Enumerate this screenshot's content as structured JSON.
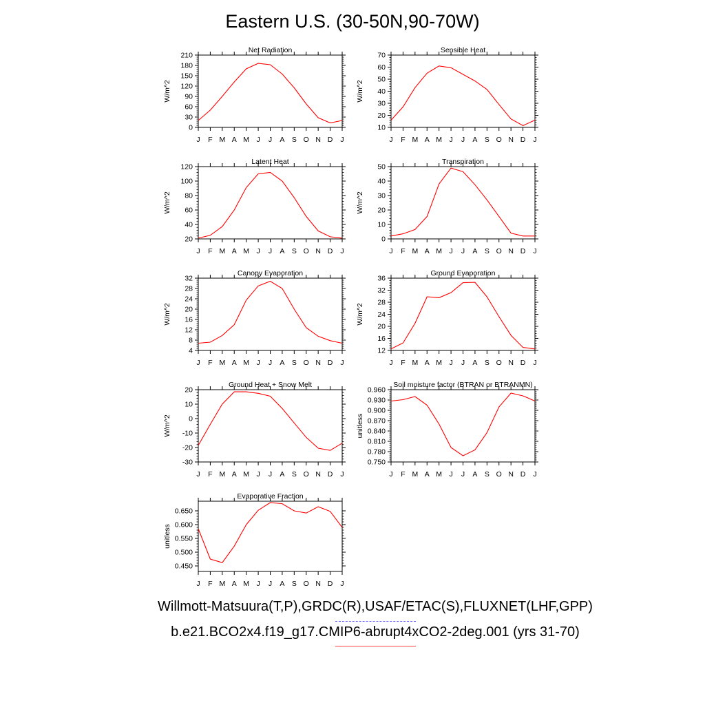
{
  "title": "Eastern U.S. (30-50N,90-70W)",
  "month_labels": [
    "J",
    "F",
    "M",
    "A",
    "M",
    "J",
    "J",
    "A",
    "S",
    "O",
    "N",
    "D",
    "J"
  ],
  "footer": {
    "obs_sources": "Willmott-Matsuura(T,P),GRDC(R),USAF/ETAC(S),FLUXNET(LHF,GPP)",
    "model_run": "b.e21.BCO2x4.f19_g17.CMIP6-abrupt4xCO2-2deg.001 (yrs 31-70)"
  },
  "colors": {
    "model_line": "#ff0000",
    "obs_line": "#6060ff",
    "axes": "#000000"
  },
  "chart_data": [
    {
      "type": "line",
      "title": "Net Radiation",
      "ylabel": "W/m^2",
      "ylim": [
        0,
        210
      ],
      "yticks": [
        "0",
        "30",
        "60",
        "90",
        "120",
        "150",
        "180",
        "210"
      ],
      "x": [
        "J",
        "F",
        "M",
        "A",
        "M",
        "J",
        "J",
        "A",
        "S",
        "O",
        "N",
        "D",
        "J"
      ],
      "series": [
        {
          "values": [
            20,
            50,
            90,
            132,
            170,
            186,
            182,
            155,
            115,
            68,
            28,
            13,
            20
          ]
        }
      ]
    },
    {
      "type": "line",
      "title": "Sensible Heat",
      "ylabel": "W/m^2",
      "ylim": [
        10,
        70
      ],
      "yticks": [
        "10",
        "20",
        "30",
        "40",
        "50",
        "60",
        "70"
      ],
      "x": [
        "J",
        "F",
        "M",
        "A",
        "M",
        "J",
        "J",
        "A",
        "S",
        "O",
        "N",
        "D",
        "J"
      ],
      "series": [
        {
          "values": [
            16,
            27,
            43,
            55,
            61,
            59.5,
            54,
            48.5,
            41.5,
            29,
            17,
            11.5,
            16
          ]
        }
      ]
    },
    {
      "type": "line",
      "title": "Latent Heat",
      "ylabel": "W/m^2",
      "ylim": [
        20,
        120
      ],
      "yticks": [
        "20",
        "40",
        "60",
        "80",
        "100",
        "120"
      ],
      "x": [
        "J",
        "F",
        "M",
        "A",
        "M",
        "J",
        "J",
        "A",
        "S",
        "O",
        "N",
        "D",
        "J"
      ],
      "series": [
        {
          "values": [
            21,
            25,
            37,
            60,
            91,
            110,
            112,
            100,
            77,
            51,
            31,
            23,
            21
          ]
        }
      ]
    },
    {
      "type": "line",
      "title": "Transpiration",
      "ylabel": "W/m^2",
      "ylim": [
        0,
        50
      ],
      "yticks": [
        "0",
        "10",
        "20",
        "30",
        "40",
        "50"
      ],
      "x": [
        "J",
        "F",
        "M",
        "A",
        "M",
        "J",
        "J",
        "A",
        "S",
        "O",
        "N",
        "D",
        "J"
      ],
      "series": [
        {
          "values": [
            2,
            3.5,
            6.5,
            15.5,
            38,
            49,
            46.5,
            37.5,
            27,
            15.5,
            4,
            2,
            2
          ]
        }
      ]
    },
    {
      "type": "line",
      "title": "Canopy Evaporation",
      "ylabel": "W/m^2",
      "ylim": [
        4,
        32
      ],
      "yticks": [
        "4",
        "8",
        "12",
        "16",
        "20",
        "24",
        "28",
        "32"
      ],
      "x": [
        "J",
        "F",
        "M",
        "A",
        "M",
        "J",
        "J",
        "A",
        "S",
        "O",
        "N",
        "D",
        "J"
      ],
      "series": [
        {
          "values": [
            6.8,
            7.2,
            9.8,
            14,
            23.5,
            29,
            30.8,
            28,
            20,
            12.8,
            9.5,
            7.8,
            6.8
          ]
        }
      ]
    },
    {
      "type": "line",
      "title": "Ground Evaporation",
      "ylabel": "W/m^2",
      "ylim": [
        12,
        36
      ],
      "yticks": [
        "12",
        "16",
        "20",
        "24",
        "28",
        "32",
        "36"
      ],
      "x": [
        "J",
        "F",
        "M",
        "A",
        "M",
        "J",
        "J",
        "A",
        "S",
        "O",
        "N",
        "D",
        "J"
      ],
      "series": [
        {
          "values": [
            12.5,
            14.5,
            21,
            29.8,
            29.5,
            31.2,
            34.5,
            34.6,
            29.8,
            23.2,
            17,
            13,
            12.5
          ]
        }
      ]
    },
    {
      "type": "line",
      "title": "Ground Heat + Snow Melt",
      "ylabel": "W/m^2",
      "ylim": [
        -30,
        20
      ],
      "yticks": [
        "-30",
        "-20",
        "-10",
        "0",
        "10",
        "20"
      ],
      "x": [
        "J",
        "F",
        "M",
        "A",
        "M",
        "J",
        "J",
        "A",
        "S",
        "O",
        "N",
        "D",
        "J"
      ],
      "series": [
        {
          "values": [
            -18.5,
            -4,
            10,
            18.5,
            18.5,
            17.5,
            15.5,
            7,
            -3,
            -13,
            -20.5,
            -22,
            -17
          ]
        }
      ]
    },
    {
      "type": "line",
      "title": "Soil moisture factor (BTRAN or BTRANMN)",
      "ylabel": "unitless",
      "ylim": [
        0.75,
        0.96
      ],
      "yticks": [
        "0.750",
        "0.780",
        "0.810",
        "0.840",
        "0.870",
        "0.900",
        "0.930",
        "0.960"
      ],
      "x": [
        "J",
        "F",
        "M",
        "A",
        "M",
        "J",
        "J",
        "A",
        "S",
        "O",
        "N",
        "D",
        "J"
      ],
      "series": [
        {
          "values": [
            0.927,
            0.931,
            0.94,
            0.915,
            0.86,
            0.792,
            0.768,
            0.785,
            0.835,
            0.91,
            0.95,
            0.942,
            0.927
          ]
        }
      ]
    },
    {
      "type": "line",
      "title": "Evaporative Fraction",
      "ylabel": "unitless",
      "ylim": [
        0.43,
        0.685
      ],
      "yticks": [
        "0.450",
        "0.500",
        "0.550",
        "0.600",
        "0.650"
      ],
      "x": [
        "J",
        "F",
        "M",
        "A",
        "M",
        "J",
        "J",
        "A",
        "S",
        "O",
        "N",
        "D",
        "J"
      ],
      "series": [
        {
          "values": [
            0.585,
            0.475,
            0.462,
            0.522,
            0.6,
            0.652,
            0.68,
            0.676,
            0.65,
            0.642,
            0.665,
            0.648,
            0.59
          ]
        }
      ]
    }
  ]
}
